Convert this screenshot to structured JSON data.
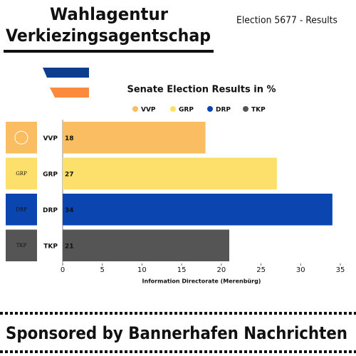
{
  "header": {
    "title_line1": "Wahlagentur",
    "title_line2": "Verkiezingsagentschap",
    "subtitle": "Election 5677 - Results"
  },
  "footer": "Sponsored by Bannerhafen Nachrichten",
  "chart_data": {
    "type": "bar",
    "orientation": "horizontal",
    "title": "Senate Election Results in %",
    "x_label": "Information Directorate (Merenbürg)",
    "categories": [
      "VVP",
      "GRP",
      "DRP",
      "TKP"
    ],
    "values": [
      18,
      27,
      34,
      21
    ],
    "colors": [
      "#fbbd62",
      "#fde06b",
      "#0b46b0",
      "#555555"
    ],
    "xlim": [
      0,
      35
    ],
    "xticks": [
      0,
      5,
      10,
      15,
      20,
      25,
      30,
      35
    ],
    "legend": "top"
  }
}
